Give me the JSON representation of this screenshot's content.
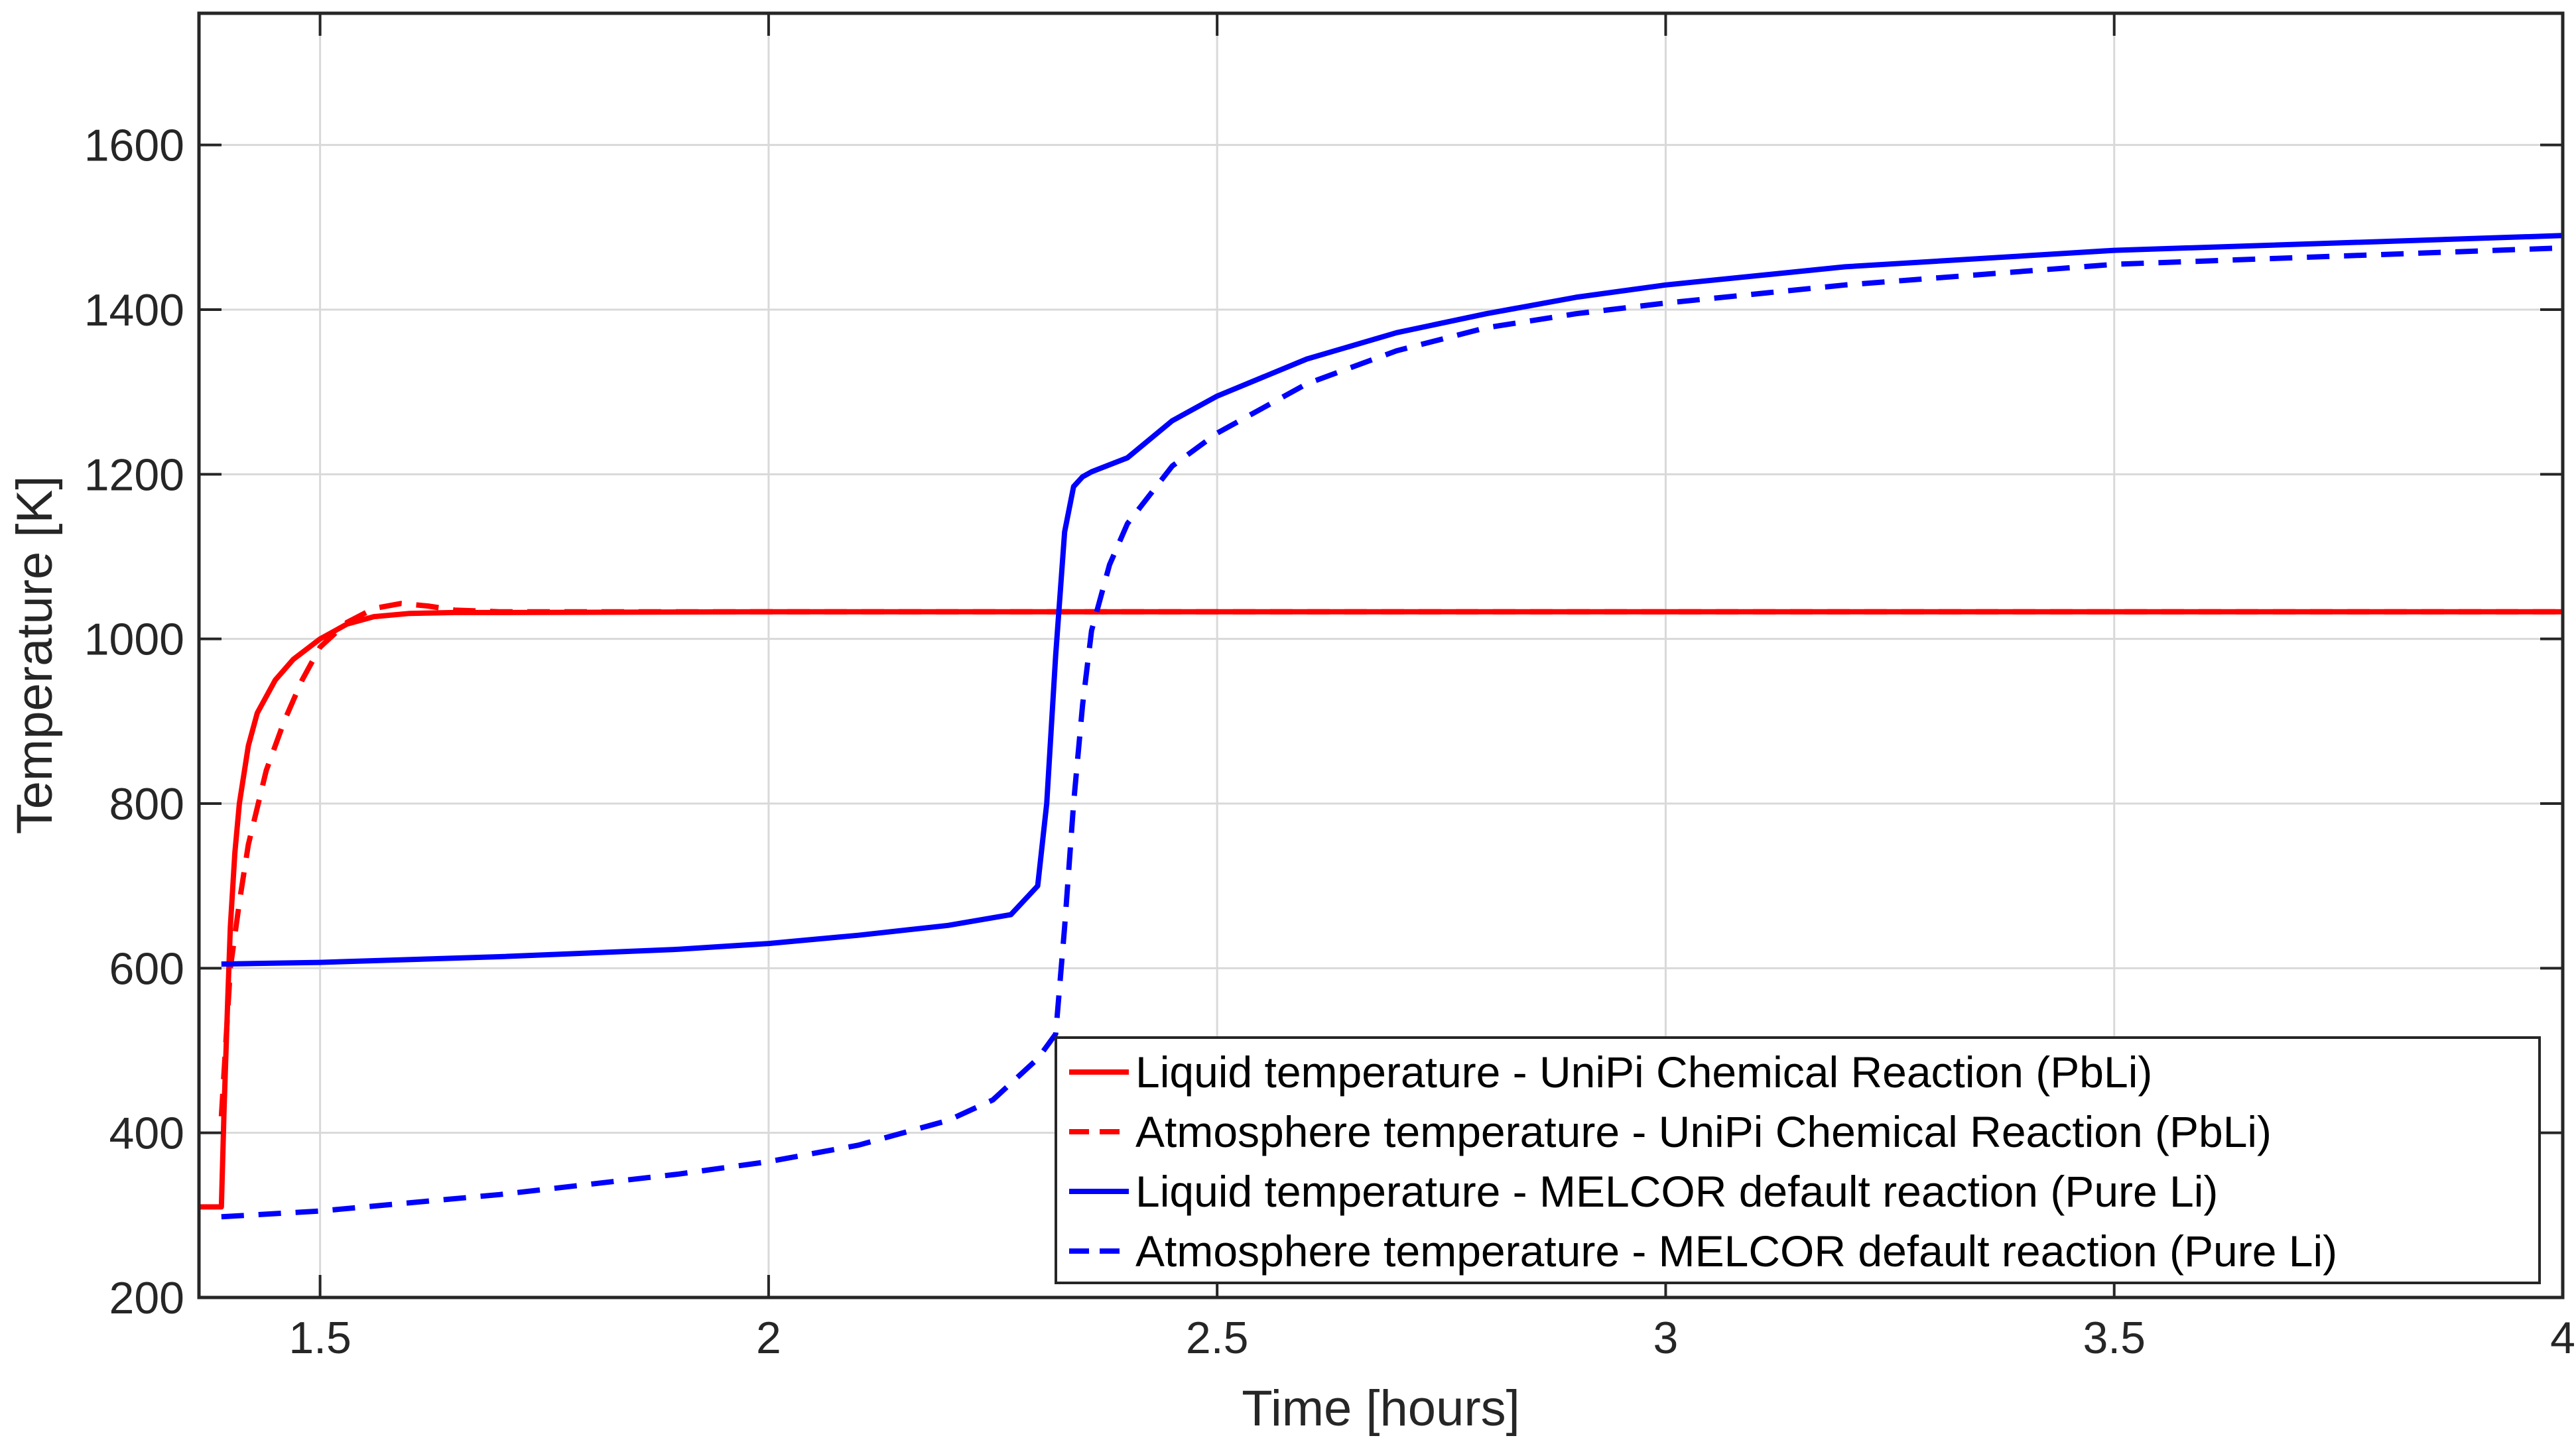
{
  "chart_data": {
    "type": "line",
    "title": "",
    "xlabel": "Time [hours]",
    "ylabel": "Temperature [K]",
    "xlim": [
      1.365,
      4
    ],
    "ylim": [
      200,
      1760
    ],
    "xticks": [
      1.5,
      2,
      2.5,
      3,
      3.5,
      4
    ],
    "xtick_labels": [
      "1.5",
      "2",
      "2.5",
      "3",
      "3.5",
      "4"
    ],
    "yticks": [
      200,
      400,
      600,
      800,
      1000,
      1200,
      1400,
      1600
    ],
    "ytick_labels": [
      "200",
      "400",
      "600",
      "800",
      "1000",
      "1200",
      "1400",
      "1600"
    ],
    "grid": true,
    "legend_position": "bottom-right",
    "series": [
      {
        "name": "Liquid temperature - UniPi Chemical Reaction (PbLi)",
        "color": "#ff0000",
        "style": "solid",
        "x": [
          1.365,
          1.39,
          1.393,
          1.397,
          1.4,
          1.405,
          1.41,
          1.42,
          1.43,
          1.45,
          1.47,
          1.5,
          1.53,
          1.56,
          1.6,
          1.65,
          1.7,
          2.0,
          2.5,
          3.0,
          3.5,
          4.0
        ],
        "y": [
          310,
          310,
          430,
          560,
          650,
          740,
          800,
          870,
          910,
          950,
          975,
          1000,
          1018,
          1027,
          1031,
          1032,
          1032,
          1033,
          1033,
          1033,
          1033,
          1033
        ]
      },
      {
        "name": "Atmosphere temperature - UniPi Chemical Reaction (PbLi)",
        "color": "#ff0000",
        "style": "dashed",
        "x": [
          1.39,
          1.4,
          1.41,
          1.42,
          1.44,
          1.46,
          1.48,
          1.5,
          1.53,
          1.56,
          1.59,
          1.62,
          1.65,
          1.7,
          2.0,
          3.0,
          4.0
        ],
        "y": [
          420,
          600,
          680,
          750,
          840,
          900,
          950,
          990,
          1020,
          1037,
          1043,
          1040,
          1035,
          1033,
          1033,
          1033,
          1033
        ]
      },
      {
        "name": "Liquid temperature - MELCOR default reaction (Pure Li)",
        "color": "#0000ff",
        "style": "solid",
        "x": [
          1.39,
          1.5,
          1.7,
          1.9,
          2.0,
          2.1,
          2.2,
          2.27,
          2.3,
          2.31,
          2.32,
          2.33,
          2.34,
          2.35,
          2.36,
          2.4,
          2.45,
          2.5,
          2.6,
          2.7,
          2.8,
          2.9,
          3.0,
          3.2,
          3.5,
          4.0
        ],
        "y": [
          605,
          607,
          614,
          623,
          630,
          640,
          652,
          665,
          700,
          800,
          980,
          1130,
          1185,
          1197,
          1203,
          1220,
          1265,
          1295,
          1340,
          1372,
          1395,
          1415,
          1430,
          1452,
          1472,
          1490
        ]
      },
      {
        "name": "Atmosphere temperature - MELCOR default reaction (Pure Li)",
        "color": "#0000ff",
        "style": "dashed",
        "x": [
          1.39,
          1.5,
          1.7,
          1.9,
          2.0,
          2.1,
          2.2,
          2.25,
          2.3,
          2.32,
          2.33,
          2.34,
          2.35,
          2.36,
          2.38,
          2.4,
          2.45,
          2.5,
          2.6,
          2.7,
          2.8,
          2.9,
          3.0,
          3.2,
          3.5,
          4.0
        ],
        "y": [
          298,
          305,
          325,
          350,
          365,
          385,
          415,
          440,
          490,
          520,
          650,
          800,
          920,
          1010,
          1090,
          1140,
          1210,
          1250,
          1310,
          1350,
          1378,
          1395,
          1408,
          1430,
          1455,
          1475
        ]
      }
    ]
  }
}
